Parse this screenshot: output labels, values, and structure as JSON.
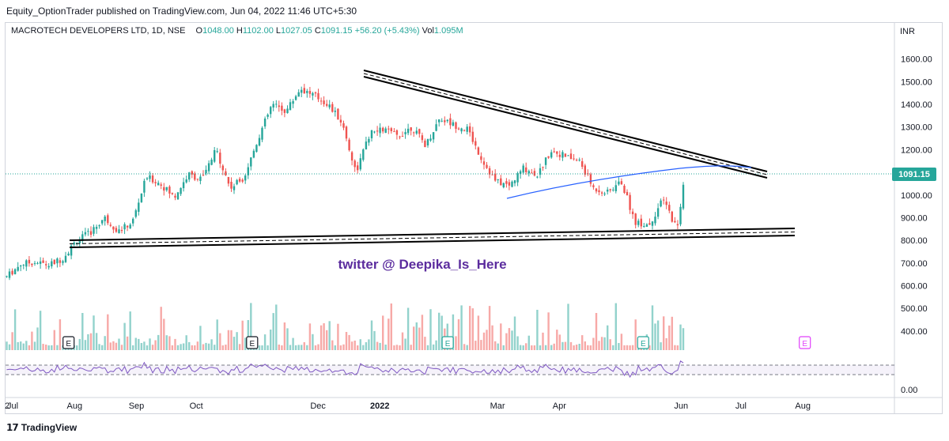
{
  "header": {
    "published": "Equity_OptionTrader published on TradingView.com, Jun 04, 2022 11:46 UTC+5:30"
  },
  "legend": {
    "symbol": "MACROTECH DEVELOPERS LTD, 1D, NSE",
    "o_label": "O",
    "o": "1048.00",
    "h_label": "H",
    "h": "1102.00",
    "l_label": "L",
    "l": "1027.05",
    "c_label": "C",
    "c": "1091.15",
    "change": "+56.20 (+5.43%)",
    "vol_label": "Vol",
    "vol": "1.095M"
  },
  "watermark": "twitter @ Deepika_Is_Here",
  "footer": {
    "brand": "TradingView"
  },
  "colors": {
    "up": "#26a69a",
    "down": "#ef5350",
    "rsi": "#7e57c2",
    "ma": "#2962ff",
    "watermark": "#5b2c9e",
    "last_price": "#26a69a"
  },
  "chart_data": {
    "type": "candlestick",
    "currency": "INR",
    "last_price": "1091.15",
    "y_ticks": [
      "1600.00",
      "1500.00",
      "1400.00",
      "1300.00",
      "1200.00",
      "1100.00",
      "1000.00",
      "900.00",
      "800.00",
      "700.00",
      "600.00",
      "500.00",
      "400.00"
    ],
    "rsi_tick": "0.00",
    "ylim": [
      330,
      1650
    ],
    "x_ticks": [
      "2",
      "Jul",
      "Aug",
      "Sep",
      "Oct",
      "Dec",
      "2022",
      "Mar",
      "Apr",
      "Jun",
      "Jul",
      "Aug"
    ],
    "close_series": [
      {
        "d": "2021-06-28",
        "c": 640
      },
      {
        "d": "2021-07-05",
        "c": 695
      },
      {
        "d": "2021-07-12",
        "c": 705
      },
      {
        "d": "2021-07-19",
        "c": 690
      },
      {
        "d": "2021-07-26",
        "c": 720
      },
      {
        "d": "2021-08-02",
        "c": 800
      },
      {
        "d": "2021-08-09",
        "c": 835
      },
      {
        "d": "2021-08-16",
        "c": 900
      },
      {
        "d": "2021-08-23",
        "c": 840
      },
      {
        "d": "2021-08-30",
        "c": 880
      },
      {
        "d": "2021-09-06",
        "c": 1080
      },
      {
        "d": "2021-09-13",
        "c": 1050
      },
      {
        "d": "2021-09-20",
        "c": 990
      },
      {
        "d": "2021-09-27",
        "c": 1090
      },
      {
        "d": "2021-10-04",
        "c": 1070
      },
      {
        "d": "2021-10-11",
        "c": 1200
      },
      {
        "d": "2021-10-18",
        "c": 1030
      },
      {
        "d": "2021-10-25",
        "c": 1080
      },
      {
        "d": "2021-11-01",
        "c": 1250
      },
      {
        "d": "2021-11-08",
        "c": 1400
      },
      {
        "d": "2021-11-15",
        "c": 1370
      },
      {
        "d": "2021-11-22",
        "c": 1470
      },
      {
        "d": "2021-11-29",
        "c": 1440
      },
      {
        "d": "2021-12-06",
        "c": 1400
      },
      {
        "d": "2021-12-13",
        "c": 1320
      },
      {
        "d": "2021-12-20",
        "c": 1100
      },
      {
        "d": "2021-12-27",
        "c": 1270
      },
      {
        "d": "2022-01-03",
        "c": 1290
      },
      {
        "d": "2022-01-10",
        "c": 1260
      },
      {
        "d": "2022-01-17",
        "c": 1300
      },
      {
        "d": "2022-01-24",
        "c": 1220
      },
      {
        "d": "2022-01-31",
        "c": 1340
      },
      {
        "d": "2022-02-07",
        "c": 1310
      },
      {
        "d": "2022-02-14",
        "c": 1290
      },
      {
        "d": "2022-02-21",
        "c": 1160
      },
      {
        "d": "2022-02-28",
        "c": 1060
      },
      {
        "d": "2022-03-07",
        "c": 1040
      },
      {
        "d": "2022-03-14",
        "c": 1120
      },
      {
        "d": "2022-03-21",
        "c": 1090
      },
      {
        "d": "2022-03-28",
        "c": 1200
      },
      {
        "d": "2022-04-04",
        "c": 1170
      },
      {
        "d": "2022-04-11",
        "c": 1150
      },
      {
        "d": "2022-04-18",
        "c": 1030
      },
      {
        "d": "2022-04-25",
        "c": 1010
      },
      {
        "d": "2022-05-02",
        "c": 1060
      },
      {
        "d": "2022-05-09",
        "c": 880
      },
      {
        "d": "2022-05-16",
        "c": 870
      },
      {
        "d": "2022-05-23",
        "c": 980
      },
      {
        "d": "2022-05-30",
        "c": 850
      },
      {
        "d": "2022-06-03",
        "c": 1091.15
      }
    ],
    "volume_markers": [
      {
        "label": "E",
        "d": "2021-07-29"
      },
      {
        "label": "E",
        "d": "2021-10-29"
      },
      {
        "label": "E",
        "d": "2022-02-04"
      },
      {
        "label": "E",
        "d": "2022-05-13"
      },
      {
        "label": "E",
        "d": "2022-08-02"
      }
    ]
  }
}
